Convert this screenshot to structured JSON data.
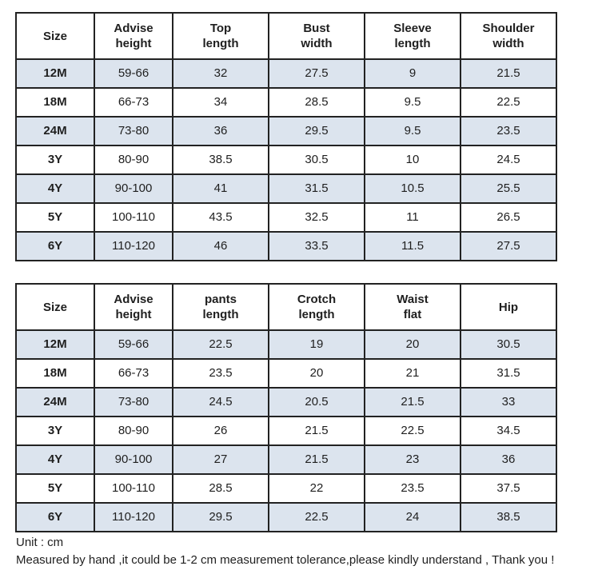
{
  "colors": {
    "row_shaded": "#dce4ee",
    "row_plain": "#ffffff",
    "border": "#222222",
    "text": "#1f1f1f",
    "page_bg": "#ffffff"
  },
  "tables": [
    {
      "title": "tops-measurements",
      "headers": [
        "Size",
        "Advise\nheight",
        "Top\nlength",
        "Bust\nwidth",
        "Sleeve\nlength",
        "Shoulder\nwidth"
      ],
      "rows": [
        [
          "12M",
          "59-66",
          "32",
          "27.5",
          "9",
          "21.5"
        ],
        [
          "18M",
          "66-73",
          "34",
          "28.5",
          "9.5",
          "22.5"
        ],
        [
          "24M",
          "73-80",
          "36",
          "29.5",
          "9.5",
          "23.5"
        ],
        [
          "3Y",
          "80-90",
          "38.5",
          "30.5",
          "10",
          "24.5"
        ],
        [
          "4Y",
          "90-100",
          "41",
          "31.5",
          "10.5",
          "25.5"
        ],
        [
          "5Y",
          "100-110",
          "43.5",
          "32.5",
          "11",
          "26.5"
        ],
        [
          "6Y",
          "110-120",
          "46",
          "33.5",
          "11.5",
          "27.5"
        ]
      ]
    },
    {
      "title": "pants-measurements",
      "headers": [
        "Size",
        "Advise\nheight",
        "pants\nlength",
        "Crotch\nlength",
        "Waist\nflat",
        "Hip"
      ],
      "rows": [
        [
          "12M",
          "59-66",
          "22.5",
          "19",
          "20",
          "30.5"
        ],
        [
          "18M",
          "66-73",
          "23.5",
          "20",
          "21",
          "31.5"
        ],
        [
          "24M",
          "73-80",
          "24.5",
          "20.5",
          "21.5",
          "33"
        ],
        [
          "3Y",
          "80-90",
          "26",
          "21.5",
          "22.5",
          "34.5"
        ],
        [
          "4Y",
          "90-100",
          "27",
          "21.5",
          "23",
          "36"
        ],
        [
          "5Y",
          "100-110",
          "28.5",
          "22",
          "23.5",
          "37.5"
        ],
        [
          "6Y",
          "110-120",
          "29.5",
          "22.5",
          "24",
          "38.5"
        ]
      ]
    }
  ],
  "footer": {
    "unit_note": "Unit : cm",
    "tolerance_note": "Measured by hand ,it could be 1-2 cm measurement tolerance,please kindly understand , Thank you !"
  }
}
